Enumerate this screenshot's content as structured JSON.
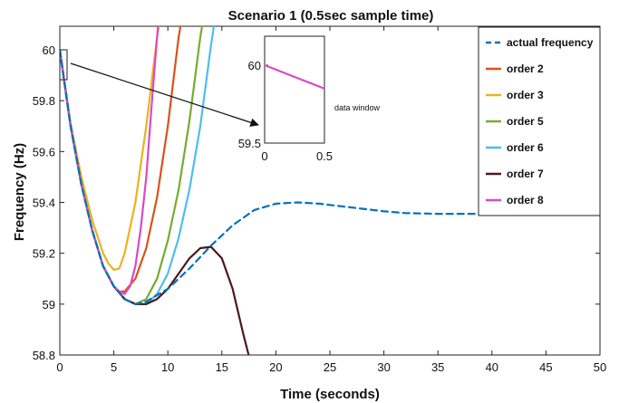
{
  "chart_data": {
    "type": "line",
    "title": "Scenario 1 (0.5sec sample time)",
    "xlabel": "Time (seconds)",
    "ylabel": "Frequency (Hz)",
    "xlim": [
      0,
      50
    ],
    "ylim": [
      58.8,
      60.1
    ],
    "x_ticks": [
      "0",
      "5",
      "10",
      "15",
      "20",
      "25",
      "30",
      "35",
      "40",
      "45",
      "50"
    ],
    "y_ticks": [
      "58.8",
      "59",
      "59.2",
      "59.4",
      "59.6",
      "59.8",
      "60"
    ],
    "legend_position": "top-right",
    "series": [
      {
        "name": "actual frequency",
        "color": "#0072BD",
        "style": "dashed",
        "x": [
          0,
          1,
          2,
          3,
          4,
          5,
          6,
          7,
          8,
          10,
          12,
          14,
          16,
          18,
          20,
          22,
          24,
          26,
          28,
          30,
          32,
          35,
          40,
          45,
          50
        ],
        "y": [
          60.0,
          59.7,
          59.47,
          59.29,
          59.15,
          59.07,
          59.02,
          59.0,
          59.01,
          59.06,
          59.14,
          59.23,
          59.31,
          59.37,
          59.395,
          59.4,
          59.395,
          59.385,
          59.375,
          59.365,
          59.358,
          59.355,
          59.355,
          59.355,
          59.355
        ]
      },
      {
        "name": "order 2",
        "color": "#D95319",
        "style": "solid",
        "x": [
          0,
          1,
          2,
          3,
          4,
          5,
          5.5,
          6,
          7,
          8,
          9,
          10,
          11,
          12
        ],
        "y": [
          60.0,
          59.7,
          59.47,
          59.29,
          59.15,
          59.07,
          59.05,
          59.05,
          59.1,
          59.22,
          59.42,
          59.7,
          60.05,
          60.3
        ]
      },
      {
        "name": "order 3",
        "color": "#EDB120",
        "style": "solid",
        "x": [
          0,
          1,
          2,
          3,
          4,
          4.5,
          5,
          5.5,
          6,
          7,
          8,
          9,
          10
        ],
        "y": [
          60.0,
          59.71,
          59.5,
          59.33,
          59.2,
          59.16,
          59.135,
          59.14,
          59.2,
          59.4,
          59.7,
          60.05,
          60.3
        ]
      },
      {
        "name": "order 5",
        "color": "#77AC30",
        "style": "solid",
        "x": [
          0,
          1,
          2,
          3,
          4,
          5,
          6,
          7,
          8,
          9,
          10,
          11,
          12,
          13,
          14
        ],
        "y": [
          60.0,
          59.7,
          59.47,
          59.29,
          59.15,
          59.07,
          59.02,
          59.0,
          59.02,
          59.1,
          59.25,
          59.45,
          59.72,
          60.05,
          60.3
        ]
      },
      {
        "name": "order 6",
        "color": "#4DBEEE",
        "style": "solid",
        "x": [
          0,
          1,
          2,
          3,
          4,
          5,
          6,
          7,
          8,
          9,
          10,
          11,
          12,
          13,
          14,
          15
        ],
        "y": [
          60.0,
          59.7,
          59.47,
          59.29,
          59.15,
          59.07,
          59.02,
          59.0,
          59.0,
          59.04,
          59.12,
          59.26,
          59.45,
          59.7,
          60.02,
          60.3
        ]
      },
      {
        "name": "order 7",
        "color": "#4A1A1A",
        "style": "solid",
        "x": [
          0,
          1,
          2,
          3,
          4,
          5,
          6,
          7,
          8,
          9,
          10,
          11,
          12,
          13,
          14,
          15,
          16,
          17,
          17.6
        ],
        "y": [
          60.0,
          59.7,
          59.47,
          59.29,
          59.15,
          59.07,
          59.02,
          59.0,
          59.0,
          59.02,
          59.06,
          59.12,
          59.18,
          59.22,
          59.225,
          59.18,
          59.06,
          58.88,
          58.78
        ]
      },
      {
        "name": "order 8",
        "color": "#D84CC4",
        "style": "solid",
        "x": [
          0,
          1,
          2,
          3,
          4,
          5,
          5.5,
          6,
          6.5,
          7,
          7.5,
          8,
          8.5,
          9,
          9.5
        ],
        "y": [
          60.0,
          59.7,
          59.47,
          59.29,
          59.15,
          59.07,
          59.05,
          59.04,
          59.07,
          59.15,
          59.3,
          59.5,
          59.78,
          60.05,
          60.3
        ]
      }
    ],
    "inset": {
      "annotation": "data window",
      "xlim": [
        0,
        0.5
      ],
      "ylim": [
        59.5,
        60.1
      ],
      "x_ticks": [
        "0",
        "0.5"
      ],
      "y_ticks": [
        "59.5",
        "60"
      ],
      "x": [
        0,
        0.5
      ],
      "y": [
        60.0,
        59.85
      ],
      "color": "#D84CC4"
    }
  }
}
